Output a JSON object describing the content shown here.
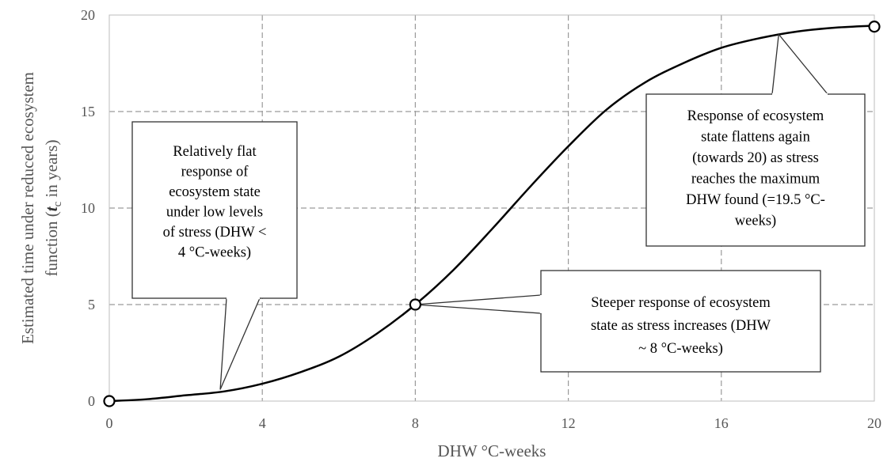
{
  "chart_data": {
    "type": "line",
    "title": "",
    "xlabel": "DHW °C-weeks",
    "ylabel_line1": "Estimated time under reduced ecosystem",
    "ylabel_line2_prefix": "function (",
    "ylabel_symbol": "t",
    "ylabel_subscript": "c",
    "ylabel_line2_suffix": " in years)",
    "xlim": [
      0,
      20
    ],
    "ylim": [
      0,
      20
    ],
    "x_ticks": [
      0,
      4,
      8,
      12,
      16,
      20
    ],
    "y_ticks": [
      0,
      5,
      10,
      15,
      20
    ],
    "x_tick_labels": [
      "0",
      "4",
      "8",
      "12",
      "16",
      "20"
    ],
    "y_tick_labels": [
      "0",
      "5",
      "10",
      "15",
      "20"
    ],
    "grid": true,
    "series": [
      {
        "x": [
          0,
          1,
          2,
          3,
          4,
          5,
          6,
          7,
          8,
          9,
          10,
          11,
          12,
          13,
          14,
          15,
          16,
          17,
          18,
          19,
          20
        ],
        "y": [
          0,
          0.1,
          0.3,
          0.5,
          0.9,
          1.5,
          2.3,
          3.5,
          5.0,
          6.8,
          8.9,
          11.1,
          13.2,
          15.1,
          16.5,
          17.5,
          18.3,
          18.8,
          19.15,
          19.35,
          19.45
        ]
      }
    ],
    "markers": [
      {
        "x": 0,
        "y": 0
      },
      {
        "x": 8,
        "y": 5
      },
      {
        "x": 20,
        "y": 19.4
      }
    ],
    "annotations": [
      {
        "lines": [
          "Relatively flat",
          "response of",
          "ecosystem state",
          "under low levels",
          "of stress (DHW <",
          "4 °C-weeks)"
        ],
        "target": {
          "x": 2.9,
          "y": 0.6
        }
      },
      {
        "lines": [
          "Steeper response of ecosystem",
          "state as stress increases (DHW",
          "~ 8 °C-weeks)"
        ],
        "target": {
          "x": 8,
          "y": 5
        }
      },
      {
        "lines": [
          "Response of ecosystem",
          "state flattens again",
          "(towards 20) as stress",
          "reaches the maximum",
          "DHW found (=19.5 °C-",
          "weeks)"
        ],
        "target": {
          "x": 17.5,
          "y": 19
        }
      }
    ]
  }
}
